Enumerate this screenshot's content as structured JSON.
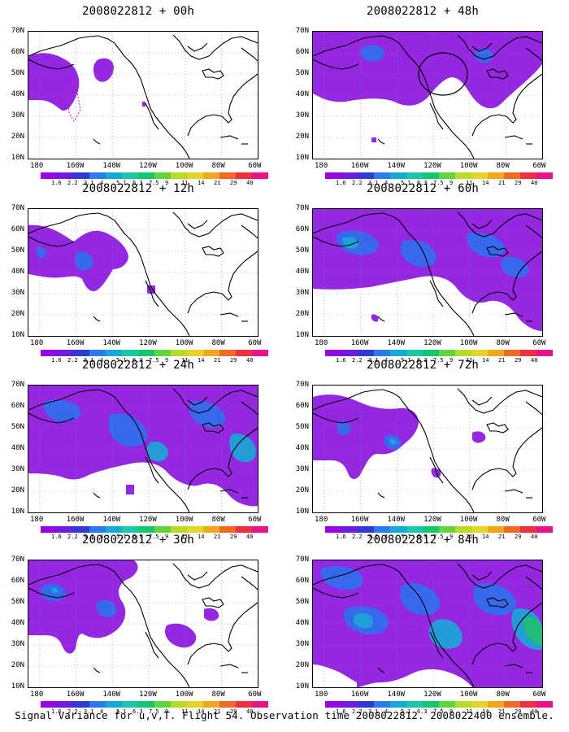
{
  "caption": "Signal Variance for u,v,T. Flight 54. Observation time 2008022812. 2008022400 ensemble.",
  "panels": [
    {
      "title": "2008022812 + 00h"
    },
    {
      "title": "2008022812 + 48h"
    },
    {
      "title": "2008022812 + 12h"
    },
    {
      "title": "2008022812 + 60h"
    },
    {
      "title": "2008022812 + 24h"
    },
    {
      "title": "2008022812 + 72h"
    },
    {
      "title": "2008022812 + 36h"
    },
    {
      "title": "2008022812 + 84h"
    }
  ],
  "lat_labels": [
    "70N",
    "60N",
    "50N",
    "40N",
    "30N",
    "20N",
    "10N"
  ],
  "lon_labels": [
    "180",
    "160W",
    "140W",
    "120W",
    "100W",
    "80W",
    "60W"
  ],
  "colorbar": {
    "levels": [
      "1.6",
      "2.2",
      "3.1",
      "4",
      "5.1",
      "6.3",
      "7.5",
      "9",
      "11",
      "14",
      "21",
      "29",
      "40"
    ],
    "colors": [
      "#9a00e6",
      "#6e1de0",
      "#2f3bd6",
      "#2a7bf0",
      "#14a9d6",
      "#18c6a8",
      "#12c86a",
      "#5ed63c",
      "#b5dc26",
      "#e6d426",
      "#f2a81c",
      "#f06a24",
      "#ec3040",
      "#e8128a"
    ]
  }
}
